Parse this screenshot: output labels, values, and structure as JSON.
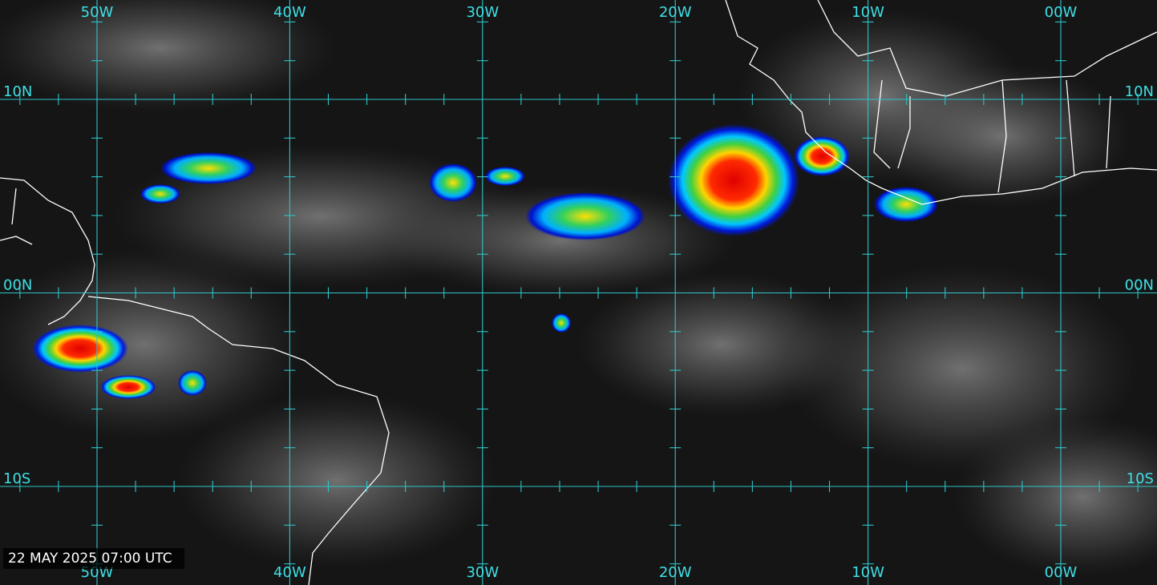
{
  "map": {
    "longitude_labels_top": [
      "50W",
      "40W",
      "30W",
      "20W",
      "10W",
      "00W"
    ],
    "longitude_labels_bottom": [
      "50W",
      "40W",
      "30W",
      "20W",
      "10W",
      "00W"
    ],
    "latitude_labels_left": [
      "10N",
      "00N",
      "10S"
    ],
    "latitude_labels_right": [
      "10N",
      "00N",
      "10S"
    ],
    "timestamp": "22 MAY 2025 07:00 UTC"
  }
}
